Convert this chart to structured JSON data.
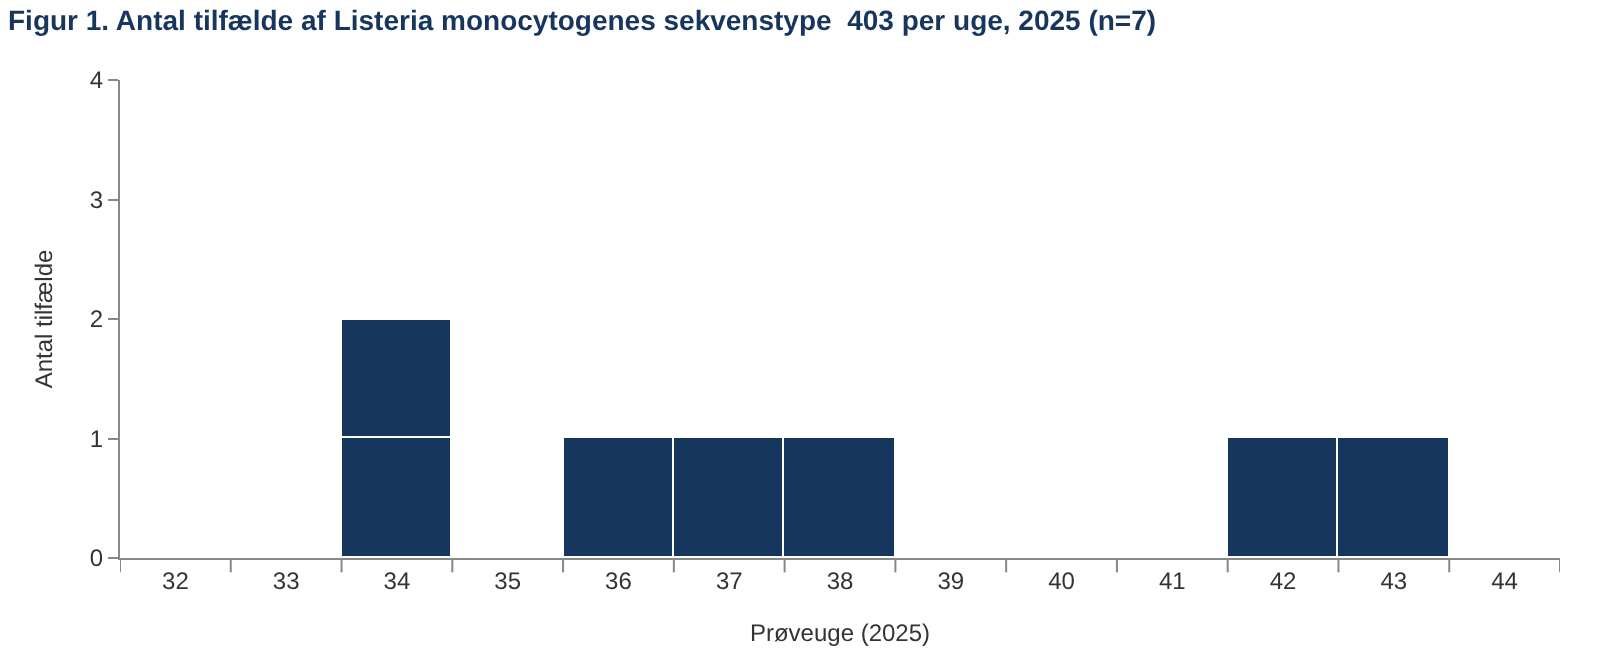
{
  "chart_data": {
    "type": "bar",
    "title": "Figur 1. Antal tilfælde af Listeria monocytogenes sekvenstype  403 per uge, 2025 (n=7)",
    "xlabel": "Prøveuge (2025)",
    "ylabel": "Antal tilfælde",
    "categories": [
      "32",
      "33",
      "34",
      "35",
      "36",
      "37",
      "38",
      "39",
      "40",
      "41",
      "42",
      "43",
      "44"
    ],
    "stacked": true,
    "series": [
      {
        "color": "#17365d",
        "values": [
          null,
          null,
          1,
          null,
          1,
          1,
          1,
          null,
          null,
          null,
          1,
          1,
          null
        ]
      },
      {
        "color": "#17365d",
        "values": [
          null,
          null,
          1,
          null,
          null,
          null,
          null,
          null,
          null,
          null,
          null,
          null,
          null
        ]
      }
    ],
    "ylim": [
      0,
      4
    ],
    "yticks": [
      0,
      1,
      2,
      3,
      4
    ]
  }
}
